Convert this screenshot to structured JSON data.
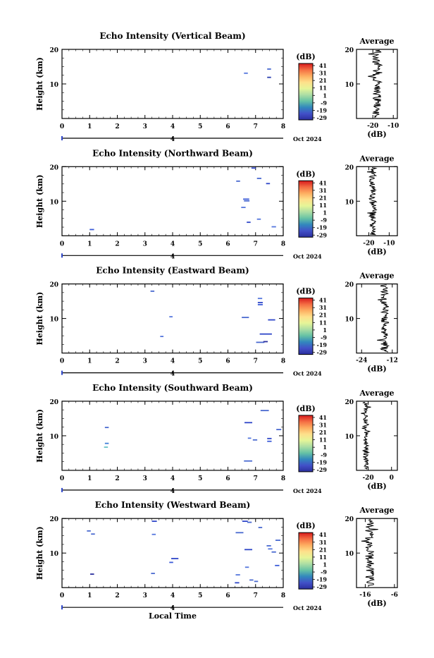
{
  "chart_data": {
    "type": "heatmap",
    "shared": {
      "ylabel": "Height (km)",
      "xlabel": "Local Time",
      "xlim": [
        0,
        8
      ],
      "ylim": [
        0,
        20
      ],
      "xticks": [
        0,
        1,
        2,
        3,
        4,
        5,
        6,
        7,
        8
      ],
      "yticks": [
        10,
        20
      ],
      "date_tick": "4",
      "date_label": "Oct 2024",
      "colorbar_unit": "(dB)",
      "colorbar_ticks": [
        "41",
        "31",
        "21",
        "11",
        "1",
        "-9",
        "-19",
        "-29"
      ],
      "colorbar_colors": [
        "#d7191c",
        "#f46d43",
        "#fdae61",
        "#fee08b",
        "#e6f598",
        "#abdda4",
        "#66c2a5",
        "#3288bd",
        "#4250c8",
        "#2b2f9e"
      ],
      "profile_title": "Average",
      "profile_xlabel": "(dB)",
      "profile_yticks": [
        10,
        20
      ]
    },
    "panels": [
      {
        "title": "Echo Intensity (Vertical Beam)",
        "segments": [
          {
            "t": 6.58,
            "h": 13.1,
            "w": 0.14,
            "c": "#5577dd"
          },
          {
            "t": 7.42,
            "h": 14.3,
            "w": 0.14,
            "c": "#4a6ad0"
          },
          {
            "t": 7.42,
            "h": 11.9,
            "w": 0.14,
            "c": "#2b3fb0"
          }
        ],
        "profile": {
          "xlim": [
            -28,
            -8
          ],
          "xticks": [
            -20,
            -10
          ],
          "center": -18,
          "amp": 2.2,
          "seed": 3
        }
      },
      {
        "title": "Echo Intensity (Northward Beam)",
        "segments": [
          {
            "t": 1.0,
            "h": 1.8,
            "w": 0.16,
            "c": "#3b5bd8"
          },
          {
            "t": 6.3,
            "h": 15.8,
            "w": 0.14,
            "c": "#4a6ad0"
          },
          {
            "t": 6.85,
            "h": 19.6,
            "w": 0.16,
            "c": "#2e46c8"
          },
          {
            "t": 7.05,
            "h": 16.6,
            "w": 0.16,
            "c": "#4a6ad0"
          },
          {
            "t": 7.38,
            "h": 15.1,
            "w": 0.14,
            "c": "#2e46c8"
          },
          {
            "t": 6.55,
            "h": 10.6,
            "w": 0.22,
            "c": "#3b5bd8"
          },
          {
            "t": 6.58,
            "h": 10.1,
            "w": 0.2,
            "c": "#4a6ad0"
          },
          {
            "t": 6.48,
            "h": 8.2,
            "w": 0.16,
            "c": "#5577dd"
          },
          {
            "t": 7.05,
            "h": 4.8,
            "w": 0.14,
            "c": "#5577dd"
          },
          {
            "t": 6.68,
            "h": 3.9,
            "w": 0.14,
            "c": "#2e46c8"
          },
          {
            "t": 7.58,
            "h": 2.6,
            "w": 0.16,
            "c": "#5577dd"
          }
        ],
        "profile": {
          "xlim": [
            -26,
            -6
          ],
          "xticks": [
            -20,
            -10
          ],
          "center": -18,
          "amp": 1.8,
          "seed": 11
        }
      },
      {
        "title": "Echo Intensity (Eastward Beam)",
        "segments": [
          {
            "t": 3.2,
            "h": 17.9,
            "w": 0.14,
            "c": "#4a6ad0"
          },
          {
            "t": 3.88,
            "h": 10.5,
            "w": 0.12,
            "c": "#5577dd"
          },
          {
            "t": 3.55,
            "h": 4.8,
            "w": 0.12,
            "c": "#5577dd"
          },
          {
            "t": 7.08,
            "h": 15.8,
            "w": 0.16,
            "c": "#5577dd"
          },
          {
            "t": 7.08,
            "h": 14.6,
            "w": 0.18,
            "c": "#2e46c8"
          },
          {
            "t": 7.08,
            "h": 14.0,
            "w": 0.18,
            "c": "#3b5bd8"
          },
          {
            "t": 6.5,
            "h": 10.3,
            "w": 0.26,
            "c": "#4a6ad0"
          },
          {
            "t": 7.45,
            "h": 9.6,
            "w": 0.26,
            "c": "#2e46c8"
          },
          {
            "t": 7.15,
            "h": 5.5,
            "w": 0.44,
            "c": "#2e46c8"
          },
          {
            "t": 7.02,
            "h": 3.1,
            "w": 0.3,
            "c": "#4a6ad0"
          },
          {
            "t": 7.28,
            "h": 3.3,
            "w": 0.16,
            "c": "#2b2f9e"
          }
        ],
        "profile": {
          "xlim": [
            -26,
            -10
          ],
          "xticks": [
            -24,
            -12
          ],
          "center": -15,
          "amp": 1.6,
          "seed": 23
        }
      },
      {
        "title": "Echo Intensity (Southward Beam)",
        "segments": [
          {
            "t": 1.55,
            "h": 12.4,
            "w": 0.14,
            "c": "#4a6ad0"
          },
          {
            "t": 1.55,
            "h": 7.8,
            "w": 0.14,
            "c": "#3f7fd8"
          },
          {
            "t": 1.52,
            "h": 6.7,
            "w": 0.14,
            "c": "#6ac2c6"
          },
          {
            "t": 7.18,
            "h": 17.3,
            "w": 0.3,
            "c": "#4a6ad0"
          },
          {
            "t": 6.6,
            "h": 13.8,
            "w": 0.28,
            "c": "#2e46c8"
          },
          {
            "t": 7.75,
            "h": 11.8,
            "w": 0.18,
            "c": "#4a6ad0"
          },
          {
            "t": 6.72,
            "h": 9.3,
            "w": 0.12,
            "c": "#5577dd"
          },
          {
            "t": 6.9,
            "h": 8.8,
            "w": 0.16,
            "c": "#4a6ad0"
          },
          {
            "t": 7.42,
            "h": 9.2,
            "w": 0.16,
            "c": "#2e46c8"
          },
          {
            "t": 7.42,
            "h": 8.4,
            "w": 0.16,
            "c": "#3b5bd8"
          },
          {
            "t": 6.58,
            "h": 2.7,
            "w": 0.3,
            "c": "#4a6ad0"
          }
        ],
        "profile": {
          "xlim": [
            -30,
            5
          ],
          "xticks": [
            -20,
            0
          ],
          "center": -22,
          "amp": 2.4,
          "seed": 37
        }
      },
      {
        "title": "Echo Intensity (Westward Beam)",
        "segments": [
          {
            "t": 0.9,
            "h": 16.4,
            "w": 0.14,
            "c": "#4a6ad0"
          },
          {
            "t": 1.05,
            "h": 15.5,
            "w": 0.14,
            "c": "#4a6ad0"
          },
          {
            "t": 3.25,
            "h": 19.2,
            "w": 0.18,
            "c": "#2e46c8"
          },
          {
            "t": 3.25,
            "h": 15.4,
            "w": 0.14,
            "c": "#5577dd"
          },
          {
            "t": 3.95,
            "h": 8.4,
            "w": 0.26,
            "c": "#2e46c8"
          },
          {
            "t": 3.88,
            "h": 7.3,
            "w": 0.14,
            "c": "#3b5bd8"
          },
          {
            "t": 3.22,
            "h": 4.1,
            "w": 0.14,
            "c": "#4a6ad0"
          },
          {
            "t": 1.02,
            "h": 3.9,
            "w": 0.14,
            "c": "#2b2f9e"
          },
          {
            "t": 6.28,
            "h": 15.9,
            "w": 0.28,
            "c": "#4a6ad0"
          },
          {
            "t": 6.52,
            "h": 19.2,
            "w": 0.2,
            "c": "#2e46c8"
          },
          {
            "t": 6.7,
            "h": 18.9,
            "w": 0.16,
            "c": "#4a6ad0"
          },
          {
            "t": 7.1,
            "h": 17.4,
            "w": 0.14,
            "c": "#4a6ad0"
          },
          {
            "t": 7.72,
            "h": 13.7,
            "w": 0.18,
            "c": "#4a6ad0"
          },
          {
            "t": 7.4,
            "h": 12.1,
            "w": 0.16,
            "c": "#4a6ad0"
          },
          {
            "t": 7.45,
            "h": 11.2,
            "w": 0.16,
            "c": "#5577dd"
          },
          {
            "t": 7.58,
            "h": 10.3,
            "w": 0.16,
            "c": "#4a6ad0"
          },
          {
            "t": 6.6,
            "h": 11.0,
            "w": 0.28,
            "c": "#2e46c8"
          },
          {
            "t": 7.7,
            "h": 6.4,
            "w": 0.16,
            "c": "#3b5bd8"
          },
          {
            "t": 6.62,
            "h": 5.9,
            "w": 0.14,
            "c": "#5577dd"
          },
          {
            "t": 6.28,
            "h": 3.7,
            "w": 0.16,
            "c": "#5577dd"
          },
          {
            "t": 6.25,
            "h": 1.4,
            "w": 0.16,
            "c": "#2e46c8"
          },
          {
            "t": 6.78,
            "h": 2.2,
            "w": 0.14,
            "c": "#4a6ad0"
          },
          {
            "t": 6.95,
            "h": 1.8,
            "w": 0.14,
            "c": "#4a6ad0"
          }
        ],
        "profile": {
          "xlim": [
            -19,
            -5
          ],
          "xticks": [
            -16,
            -6
          ],
          "center": -14.5,
          "amp": 1.5,
          "seed": 51
        }
      }
    ]
  }
}
